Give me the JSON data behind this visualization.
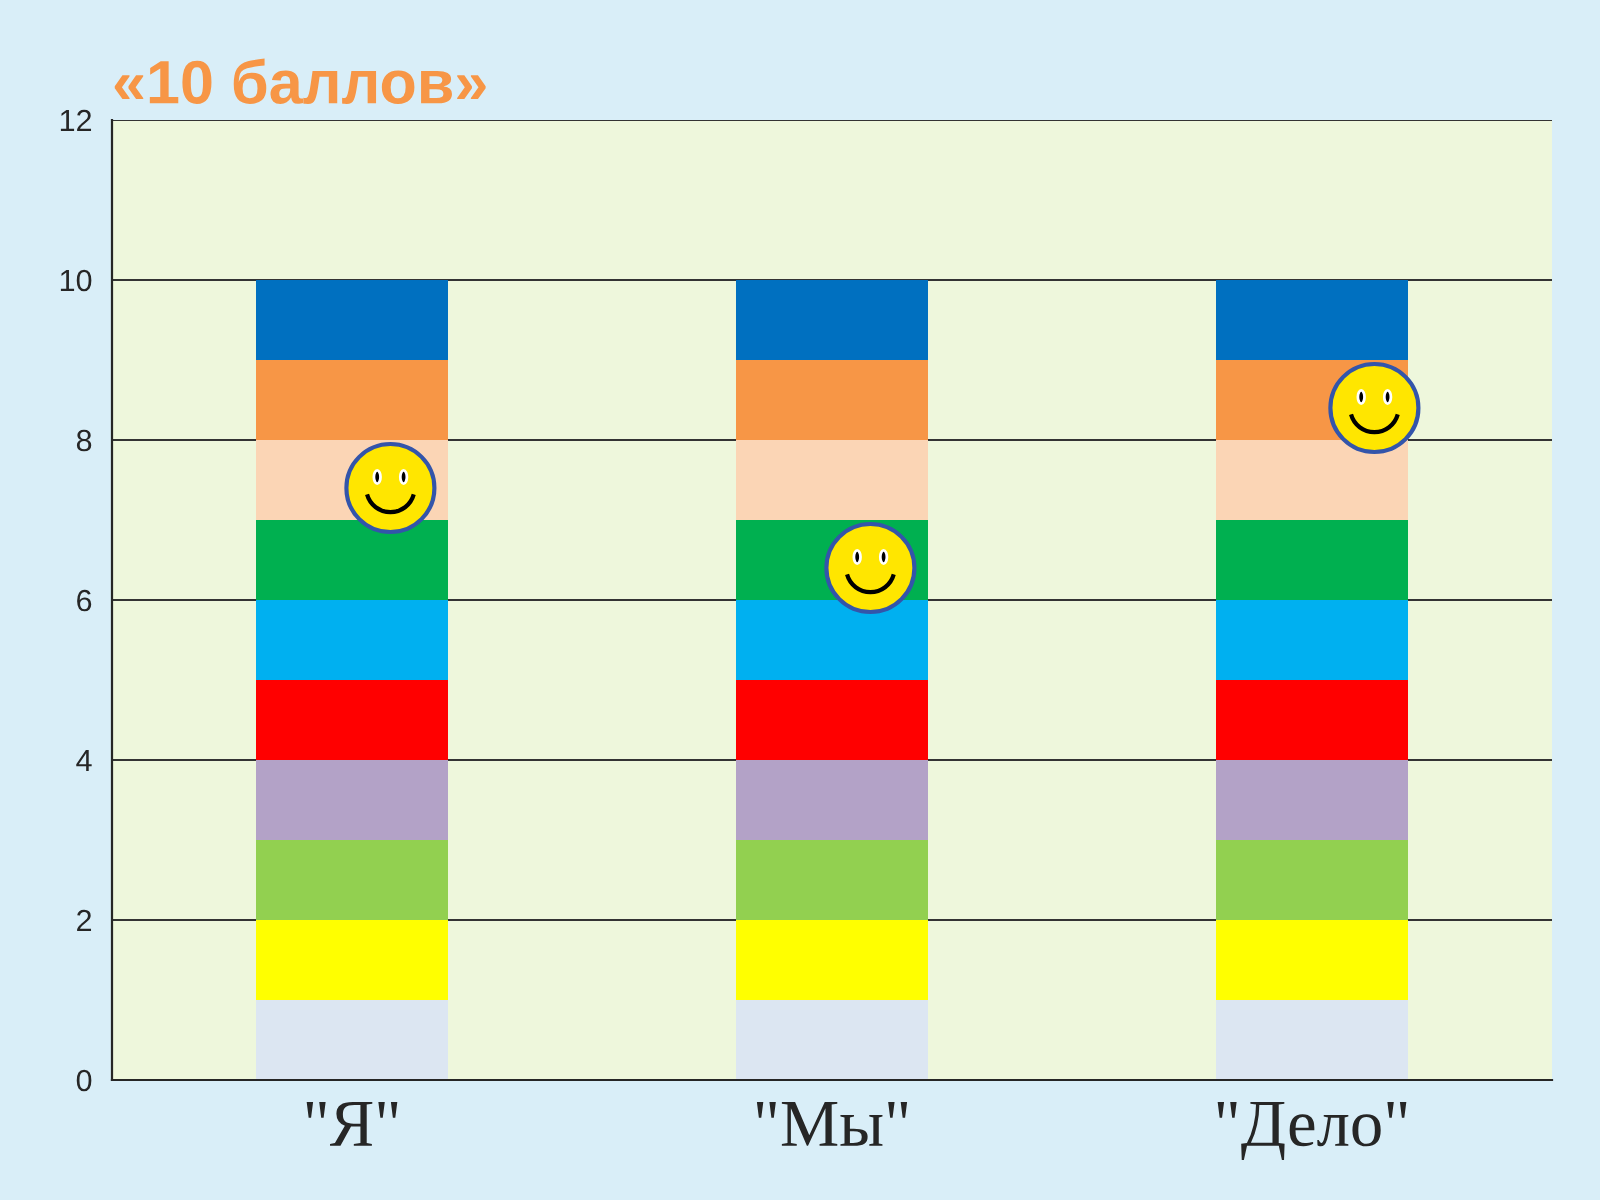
{
  "chart_data": {
    "type": "bar",
    "title": "«10 баллов»",
    "categories": [
      "\"Я\"",
      "\"Мы\"",
      "\"Дело\""
    ],
    "stacked": true,
    "series": [
      {
        "color": "#dce6f2",
        "values": [
          1,
          1,
          1
        ]
      },
      {
        "color": "#ffff00",
        "values": [
          1,
          1,
          1
        ]
      },
      {
        "color": "#92d050",
        "values": [
          1,
          1,
          1
        ]
      },
      {
        "color": "#b3a2c7",
        "values": [
          1,
          1,
          1
        ]
      },
      {
        "color": "#ff0000",
        "values": [
          1,
          1,
          1
        ]
      },
      {
        "color": "#00b0f0",
        "values": [
          1,
          1,
          1
        ]
      },
      {
        "color": "#00b050",
        "values": [
          1,
          1,
          1
        ]
      },
      {
        "color": "#fbd5b5",
        "values": [
          1,
          1,
          1
        ]
      },
      {
        "color": "#f79646",
        "values": [
          1,
          1,
          1
        ]
      },
      {
        "color": "#0070c0",
        "values": [
          1,
          1,
          1
        ]
      }
    ],
    "ylim": [
      0,
      12
    ],
    "yticks": [
      0,
      2,
      4,
      6,
      8,
      10,
      12
    ],
    "grid": "y",
    "legend": false
  }
}
